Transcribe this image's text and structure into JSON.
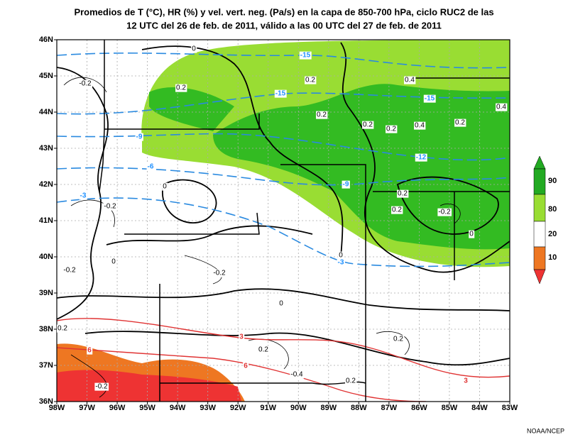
{
  "title": [
    "Promedios de T (°C), HR (%) y vel. vert. neg. (Pa/s) en la capa de 850-700 hPa, ciclo RUC2 de las",
    "12 UTC del 26 de feb. de 2011, válido a las 00 UTC del 27 de feb. de 2011"
  ],
  "lon_labels": [
    "98W",
    "97W",
    "96W",
    "95W",
    "94W",
    "93W",
    "92W",
    "91W",
    "90W",
    "89W",
    "88W",
    "87W",
    "86W",
    "85W",
    "84W",
    "83W"
  ],
  "lat_labels": [
    "46N",
    "45N",
    "44N",
    "43N",
    "42N",
    "41N",
    "40N",
    "39N",
    "38N",
    "37N",
    "36N"
  ],
  "legend": [
    "90",
    "80",
    "20",
    "10"
  ],
  "contour_labels": [
    "-0.2",
    "0.2",
    "-15",
    "0.2",
    "0.4",
    "-15",
    "-15",
    "0.4",
    "0.2",
    "0.2",
    "0.2",
    "0.4",
    "0.2",
    "-9",
    "-12",
    "-6",
    "-9",
    "0.2",
    "-3",
    "-0.2",
    "0.2",
    "-0.2",
    "-3",
    "-0.2",
    "-0.2",
    "0.2",
    "3",
    "0.2",
    "0.2",
    "6",
    "6",
    "-0.4",
    "0.2",
    "3",
    "-0.2",
    "0",
    "0",
    "0",
    "0",
    "0",
    "0"
  ],
  "credit": "NOAA/NCEP"
}
